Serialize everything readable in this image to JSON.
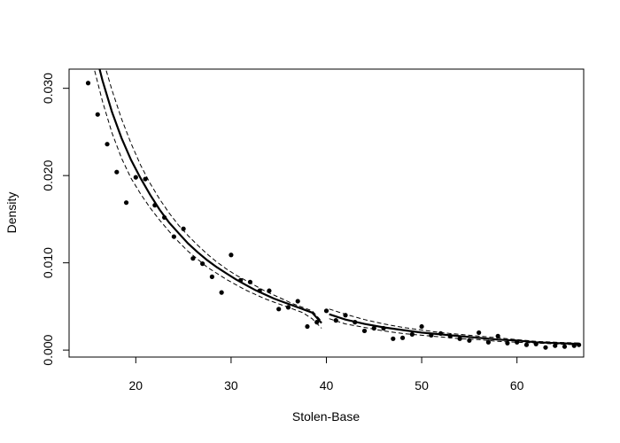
{
  "chart_data": {
    "type": "scatter",
    "title": "",
    "xlabel": "Stolen-Base",
    "ylabel": "Density",
    "xlim": [
      13,
      67
    ],
    "ylim": [
      -0.0008,
      0.0322
    ],
    "x_ticks": [
      20,
      30,
      40,
      50,
      60
    ],
    "x_tick_labels": [
      "20",
      "30",
      "40",
      "50",
      "60"
    ],
    "y_ticks": [
      0.0,
      0.01,
      0.02,
      0.03
    ],
    "y_tick_labels": [
      "0.000",
      "0.010",
      "0.020",
      "0.030"
    ],
    "grid": false,
    "legend": "none",
    "colors": {
      "points": "#000000",
      "lines": "#000000",
      "background": "#ffffff"
    },
    "points": {
      "x": [
        15,
        16,
        17,
        18,
        19,
        20,
        21,
        22,
        23,
        24,
        25,
        26,
        27,
        28,
        29,
        30,
        31,
        32,
        33,
        34,
        35,
        36,
        37,
        38,
        39,
        40,
        41,
        42,
        43,
        44,
        45,
        46,
        47,
        48,
        49,
        50,
        51,
        52,
        53,
        54,
        55,
        56,
        57,
        58,
        59,
        60,
        61,
        62,
        63,
        64,
        65,
        66,
        66.5
      ],
      "y": [
        0.0306,
        0.027,
        0.0236,
        0.0204,
        0.0169,
        0.0198,
        0.0196,
        0.0166,
        0.0152,
        0.013,
        0.0139,
        0.0105,
        0.0099,
        0.0084,
        0.0066,
        0.0109,
        0.008,
        0.0078,
        0.0068,
        0.0068,
        0.0047,
        0.0049,
        0.0056,
        0.0027,
        0.0032,
        0.0045,
        0.0034,
        0.004,
        0.0032,
        0.0022,
        0.0025,
        0.0025,
        0.0013,
        0.0014,
        0.0018,
        0.0027,
        0.0017,
        0.0019,
        0.0016,
        0.0013,
        0.0011,
        0.002,
        0.0009,
        0.0016,
        0.0008,
        0.0009,
        0.0006,
        0.0007,
        0.0003,
        0.0005,
        0.0004,
        0.0005,
        0.0006
      ]
    },
    "fitted_lines": [
      {
        "style": "solid-thick",
        "x": [
          15.5,
          16.5,
          17.5,
          18.5,
          19.5,
          20.5,
          21.5,
          22.5,
          23.5,
          24.5,
          25.5,
          26.5,
          27.5,
          28.5,
          29.5,
          30.5,
          31.5,
          32.5,
          33.5,
          34.5,
          35.5,
          36.5,
          37.5,
          38.5,
          39.5
        ],
        "y": [
          0.0352,
          0.0309,
          0.0273,
          0.0243,
          0.0218,
          0.0197,
          0.0178,
          0.0161,
          0.0146,
          0.0134,
          0.0122,
          0.0112,
          0.0103,
          0.0095,
          0.0088,
          0.0081,
          0.0075,
          0.0069,
          0.0064,
          0.0059,
          0.0055,
          0.0051,
          0.0047,
          0.0043,
          0.0031
        ]
      },
      {
        "style": "dashed",
        "x": [
          15.5,
          16.5,
          17.5,
          18.5,
          19.5,
          20.5,
          21.5,
          22.5,
          23.5,
          24.5,
          25.5,
          26.5,
          27.5,
          28.5,
          29.5,
          30.5,
          31.5,
          32.5,
          33.5,
          34.5,
          35.5,
          36.5,
          37.5,
          38.5,
          39.5
        ],
        "y": [
          0.0375,
          0.0335,
          0.0298,
          0.0265,
          0.0237,
          0.0212,
          0.0191,
          0.0173,
          0.0157,
          0.0143,
          0.0131,
          0.012,
          0.011,
          0.0101,
          0.0093,
          0.0086,
          0.008,
          0.0074,
          0.0068,
          0.0063,
          0.0058,
          0.0053,
          0.0049,
          0.0045,
          0.0033
        ]
      },
      {
        "style": "dashed",
        "x": [
          15.5,
          16.5,
          17.5,
          18.5,
          19.5,
          20.5,
          21.5,
          22.5,
          23.5,
          24.5,
          25.5,
          26.5,
          27.5,
          28.5,
          29.5,
          30.5,
          31.5,
          32.5,
          33.5,
          34.5,
          35.5,
          36.5,
          37.5,
          38.5,
          39.5
        ],
        "y": [
          0.0328,
          0.0285,
          0.0249,
          0.022,
          0.0197,
          0.0179,
          0.0163,
          0.0149,
          0.0136,
          0.0124,
          0.0113,
          0.0104,
          0.0095,
          0.0088,
          0.0081,
          0.0075,
          0.0069,
          0.0064,
          0.0059,
          0.0055,
          0.0051,
          0.0047,
          0.0043,
          0.0036,
          0.0025
        ]
      },
      {
        "style": "solid-thick",
        "x": [
          40.3,
          42,
          44,
          46,
          48,
          50,
          52,
          54,
          56,
          58,
          60,
          62,
          64,
          66.5
        ],
        "y": [
          0.0041,
          0.0035,
          0.003,
          0.0026,
          0.0023,
          0.002,
          0.0018,
          0.0016,
          0.0014,
          0.0012,
          0.0011,
          0.0009,
          0.0008,
          0.0007
        ]
      },
      {
        "style": "dashed",
        "x": [
          40.3,
          42,
          44,
          46,
          48,
          50,
          52,
          54,
          56,
          58,
          60,
          62,
          64,
          66.5
        ],
        "y": [
          0.0047,
          0.0041,
          0.0035,
          0.003,
          0.0026,
          0.0023,
          0.002,
          0.0018,
          0.0016,
          0.0014,
          0.0012,
          0.001,
          0.0009,
          0.0008
        ]
      },
      {
        "style": "dashed",
        "x": [
          40.3,
          42,
          44,
          46,
          48,
          50,
          52,
          54,
          56,
          58,
          60,
          62,
          64,
          66.5
        ],
        "y": [
          0.0036,
          0.003,
          0.0026,
          0.0022,
          0.0019,
          0.0017,
          0.0015,
          0.0013,
          0.0012,
          0.001,
          0.0009,
          0.0008,
          0.0007,
          0.0006
        ]
      }
    ]
  }
}
